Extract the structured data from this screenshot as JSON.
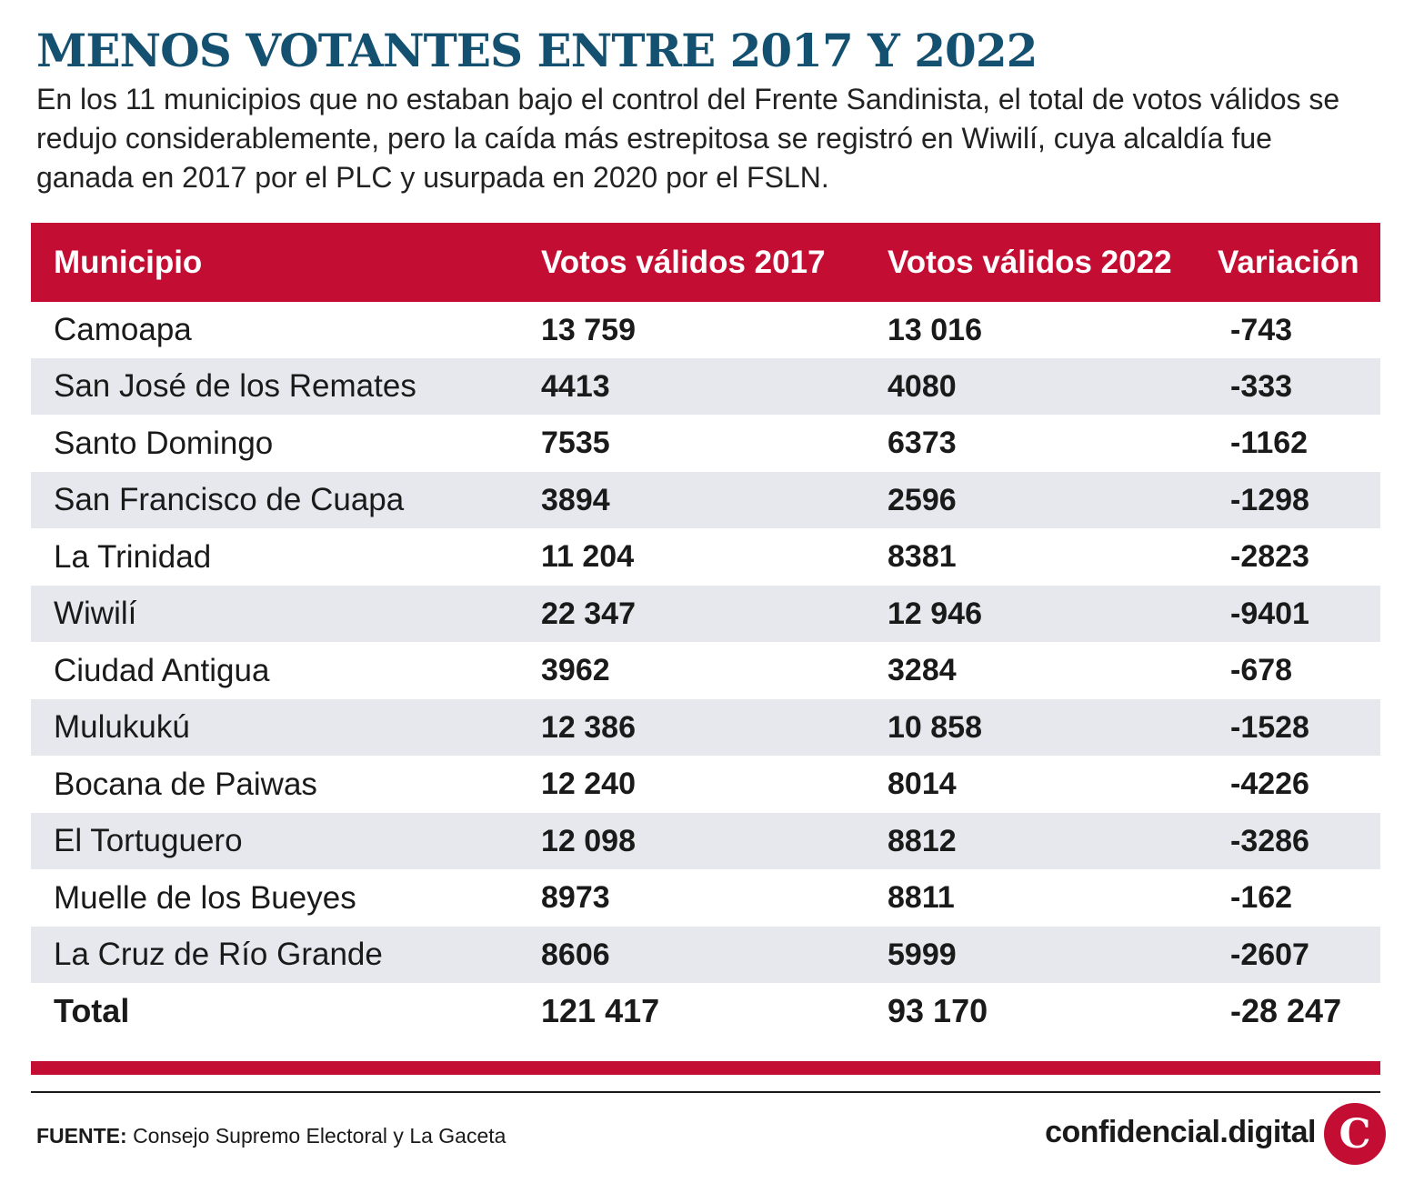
{
  "title": "MENOS VOTANTES ENTRE 2017 Y 2022",
  "subtitle": "En los 11 municipios que no estaban bajo el control del Frente Sandinista, el total de votos válidos se redujo considerablemente, pero la caída más estrepitosa se registró en Wiwilí, cuya alcaldía fue ganada en 2017 por el PLC y usurpada en 2020 por el FSLN.",
  "table": {
    "headers": [
      "Municipio",
      "Votos válidos 2017",
      "Votos válidos 2022",
      "Variación"
    ],
    "rows": [
      {
        "municipio": "Camoapa",
        "v2017": "13 759",
        "v2022": "13 016",
        "variacion": "-743"
      },
      {
        "municipio": "San José de los Remates",
        "v2017": "4413",
        "v2022": "4080",
        "variacion": "-333"
      },
      {
        "municipio": "Santo Domingo",
        "v2017": "7535",
        "v2022": "6373",
        "variacion": "-1162"
      },
      {
        "municipio": "San Francisco de Cuapa",
        "v2017": "3894",
        "v2022": "2596",
        "variacion": "-1298"
      },
      {
        "municipio": "La Trinidad",
        "v2017": "11 204",
        "v2022": "8381",
        "variacion": "-2823"
      },
      {
        "municipio": "Wiwilí",
        "v2017": "22 347",
        "v2022": "12 946",
        "variacion": "-9401"
      },
      {
        "municipio": "Ciudad Antigua",
        "v2017": "3962",
        "v2022": "3284",
        "variacion": "-678"
      },
      {
        "municipio": "Mulukukú",
        "v2017": "12 386",
        "v2022": "10 858",
        "variacion": "-1528"
      },
      {
        "municipio": "Bocana de Paiwas",
        "v2017": "12 240",
        "v2022": "8014",
        "variacion": "-4226"
      },
      {
        "municipio": "El Tortuguero",
        "v2017": "12 098",
        "v2022": "8812",
        "variacion": "-3286"
      },
      {
        "municipio": "Muelle de los Bueyes",
        "v2017": "8973",
        "v2022": "8811",
        "variacion": "-162"
      },
      {
        "municipio": "La Cruz de Río Grande",
        "v2017": "8606",
        "v2022": "5999",
        "variacion": "-2607"
      }
    ],
    "total": {
      "label": "Total",
      "v2017": "121 417",
      "v2022": "93 170",
      "variacion": "-28 247"
    }
  },
  "footer": {
    "source_label": "FUENTE:",
    "source_text": "Consejo Supremo Electoral y La Gaceta",
    "brand": "confidencial.digital",
    "logo_letter": "C"
  },
  "colors": {
    "title": "#14506f",
    "header_bg": "#c40d33",
    "row_shade": "#e6e8ed"
  },
  "icons": {
    "logo": "confidencial-logo-icon"
  }
}
